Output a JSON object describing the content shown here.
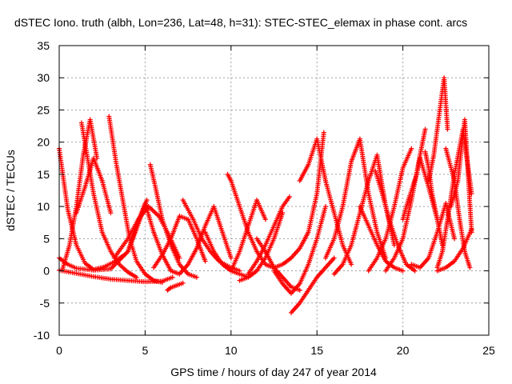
{
  "chart_data": {
    "type": "scatter",
    "title": "dSTEC Iono. truth (albh, Lon=236, Lat=48, h=31): STEC-STEC_elemax in phase cont. arcs",
    "xlabel": "GPS time / hours of day 247 of year 2014",
    "ylabel": "dSTEC  / TECUs",
    "xlim": [
      0,
      25
    ],
    "ylim": [
      -10,
      35
    ],
    "xticks": [
      "0",
      "5",
      "10",
      "15",
      "20",
      "25"
    ],
    "yticks": [
      "-10",
      "-5",
      "0",
      "5",
      "10",
      "15",
      "20",
      "25",
      "30",
      "35"
    ],
    "grid": true,
    "legend": "none",
    "marker": "+",
    "color": "#ff0000",
    "series": [
      {
        "x": [
          0.0,
          0.5,
          1.0,
          1.5,
          2.0,
          2.6,
          3.2,
          3.8
        ],
        "y": [
          19.0,
          9.5,
          4.0,
          1.2,
          0.2,
          0.6,
          1.4,
          2.5
        ]
      },
      {
        "x": [
          0.0,
          0.5,
          1.0,
          2.0,
          3.0,
          4.0,
          4.5,
          5.1
        ],
        "y": [
          2.0,
          1.0,
          0.4,
          0.1,
          0.3,
          3.0,
          6.5,
          11.0
        ]
      },
      {
        "x": [
          0.0,
          1.0,
          2.0,
          3.0,
          4.0,
          5.0,
          6.0,
          6.6
        ],
        "y": [
          0.1,
          -0.4,
          -0.9,
          -1.3,
          -1.5,
          -1.7,
          -1.6,
          -1.0
        ]
      },
      {
        "x": [
          0.2,
          0.6,
          1.0,
          1.4,
          1.8,
          2.2
        ],
        "y": [
          0.3,
          4.0,
          10.0,
          18.0,
          23.5,
          17.5
        ]
      },
      {
        "x": [
          1.3,
          2.0,
          2.5,
          3.0,
          3.5,
          4.0,
          4.5
        ],
        "y": [
          23.0,
          12.0,
          6.0,
          3.0,
          1.0,
          -0.2,
          -1.0
        ]
      },
      {
        "x": [
          1.0,
          1.5,
          2.0,
          2.5,
          3.0
        ],
        "y": [
          9.0,
          13.0,
          17.5,
          14.0,
          9.0
        ]
      },
      {
        "x": [
          2.9,
          3.3,
          3.7,
          4.1,
          4.5,
          5.0,
          5.5,
          6.0
        ],
        "y": [
          24.0,
          17.0,
          11.0,
          5.0,
          1.5,
          -0.5,
          -1.5,
          -1.8
        ]
      },
      {
        "x": [
          3.2,
          4.0,
          4.6,
          5.2,
          5.8,
          6.4,
          7.0
        ],
        "y": [
          2.0,
          5.0,
          8.0,
          10.0,
          8.5,
          5.5,
          2.0
        ]
      },
      {
        "x": [
          4.0,
          4.5,
          5.0,
          5.5,
          6.0,
          6.5
        ],
        "y": [
          3.0,
          7.0,
          10.5,
          6.0,
          2.5,
          0.0
        ]
      },
      {
        "x": [
          5.3,
          5.6,
          6.0,
          6.5,
          7.0,
          7.5,
          8.0
        ],
        "y": [
          16.5,
          13.0,
          8.0,
          4.0,
          1.0,
          -0.5,
          -1.0
        ]
      },
      {
        "x": [
          6.3,
          6.5,
          6.8,
          7.0,
          7.2
        ],
        "y": [
          -3.0,
          -2.6,
          -2.3,
          -2.1,
          -1.9
        ]
      },
      {
        "x": [
          5.5,
          6.0,
          6.5,
          7.0,
          7.5,
          8.0,
          8.5
        ],
        "y": [
          0.5,
          2.5,
          5.0,
          8.5,
          8.0,
          5.0,
          1.5
        ]
      },
      {
        "x": [
          7.2,
          7.8,
          8.3,
          8.8,
          9.3,
          10.0,
          10.5
        ],
        "y": [
          11.0,
          8.0,
          5.0,
          3.0,
          1.5,
          0.5,
          0.0
        ]
      },
      {
        "x": [
          6.5,
          7.0,
          7.5,
          8.0,
          8.5,
          9.0,
          9.5,
          10.0
        ],
        "y": [
          0.0,
          -0.5,
          1.0,
          3.5,
          7.0,
          10.0,
          6.0,
          2.0
        ]
      },
      {
        "x": [
          8.5,
          9.0,
          9.5,
          10.0,
          10.5,
          11.0
        ],
        "y": [
          6.0,
          3.0,
          1.0,
          0.0,
          -0.5,
          -1.0
        ]
      },
      {
        "x": [
          9.8,
          10.0,
          10.5,
          11.0,
          11.5,
          12.0,
          12.5
        ],
        "y": [
          15.0,
          14.0,
          10.0,
          6.0,
          3.0,
          1.0,
          0.5
        ]
      },
      {
        "x": [
          10.0,
          10.5,
          11.0,
          11.5,
          12.0
        ],
        "y": [
          0.0,
          3.0,
          7.0,
          11.0,
          8.0
        ]
      },
      {
        "x": [
          10.5,
          11.0,
          11.5,
          12.0,
          12.5,
          13.0
        ],
        "y": [
          -1.5,
          -1.0,
          0.0,
          2.0,
          5.0,
          9.0
        ]
      },
      {
        "x": [
          11.5,
          12.0,
          12.5,
          13.0,
          13.5,
          14.0
        ],
        "y": [
          5.0,
          3.0,
          0.5,
          -1.0,
          -2.5,
          -3.0
        ]
      },
      {
        "x": [
          11.0,
          11.5,
          12.0,
          12.5,
          13.0,
          13.4
        ],
        "y": [
          -0.5,
          1.5,
          4.0,
          7.0,
          10.0,
          11.5
        ]
      },
      {
        "x": [
          12.5,
          13.0,
          13.5,
          14.0,
          14.5,
          15.0,
          15.5
        ],
        "y": [
          0.0,
          -2.0,
          -3.5,
          -2.0,
          1.0,
          5.0,
          10.0
        ]
      },
      {
        "x": [
          12.0,
          12.5,
          13.0,
          13.5,
          14.0,
          14.5,
          15.0,
          15.4
        ],
        "y": [
          1.0,
          0.5,
          1.0,
          2.0,
          3.5,
          6.0,
          12.0,
          21.5
        ]
      },
      {
        "x": [
          13.5,
          14.0,
          14.5,
          15.0,
          15.5,
          16.0
        ],
        "y": [
          -6.5,
          -5.0,
          -3.0,
          -1.0,
          0.5,
          2.0
        ]
      },
      {
        "x": [
          14.0,
          14.5,
          15.0,
          15.5,
          16.0,
          16.5,
          17.0
        ],
        "y": [
          14.0,
          16.5,
          20.5,
          14.0,
          9.0,
          4.0,
          1.0
        ]
      },
      {
        "x": [
          15.5,
          16.0,
          16.5,
          17.0,
          17.5,
          18.0,
          18.5,
          19.0
        ],
        "y": [
          2.0,
          5.0,
          10.0,
          17.0,
          20.5,
          12.0,
          6.0,
          2.0
        ]
      },
      {
        "x": [
          16.0,
          16.5,
          17.0,
          17.5,
          18.0,
          18.5,
          19.0,
          19.5
        ],
        "y": [
          -0.5,
          1.0,
          4.0,
          9.0,
          14.0,
          18.0,
          10.0,
          4.0
        ]
      },
      {
        "x": [
          17.5,
          18.0,
          18.5,
          19.0,
          19.5,
          20.0
        ],
        "y": [
          10.0,
          7.0,
          4.0,
          1.5,
          0.5,
          0.0
        ]
      },
      {
        "x": [
          18.0,
          18.5,
          19.0,
          19.5,
          20.0,
          20.5
        ],
        "y": [
          0.0,
          2.0,
          5.0,
          10.0,
          16.0,
          19.0
        ]
      },
      {
        "x": [
          18.4,
          18.8,
          19.2,
          19.7,
          20.2,
          20.7
        ],
        "y": [
          15.5,
          12.0,
          8.0,
          4.0,
          1.0,
          0.0
        ]
      },
      {
        "x": [
          19.0,
          19.5,
          20.0,
          20.5,
          21.0,
          21.3
        ],
        "y": [
          0.0,
          2.0,
          5.0,
          11.0,
          18.0,
          22.0
        ]
      },
      {
        "x": [
          20.0,
          20.2,
          20.5,
          20.8,
          21.0,
          21.5,
          22.0
        ],
        "y": [
          8.0,
          10.0,
          12.5,
          15.0,
          17.5,
          13.0,
          8.0
        ]
      },
      {
        "x": [
          20.5,
          21.0,
          21.5,
          22.0,
          22.5,
          23.0
        ],
        "y": [
          1.0,
          0.5,
          2.0,
          6.0,
          10.5,
          5.0
        ]
      },
      {
        "x": [
          21.3,
          21.5,
          21.7,
          22.0,
          22.3
        ],
        "y": [
          18.5,
          16.0,
          12.0,
          8.0,
          4.0
        ]
      },
      {
        "x": [
          21.5,
          21.8,
          22.0,
          22.2,
          22.4,
          22.6
        ],
        "y": [
          14.0,
          18.0,
          22.0,
          26.0,
          30.0,
          22.0
        ]
      },
      {
        "x": [
          22.0,
          22.3,
          22.6,
          23.0,
          23.5,
          24.0
        ],
        "y": [
          0.5,
          3.0,
          8.0,
          15.0,
          22.0,
          12.0
        ]
      },
      {
        "x": [
          22.5,
          23.0,
          23.3,
          23.6,
          23.9
        ],
        "y": [
          19.0,
          14.0,
          8.0,
          3.0,
          0.5
        ]
      },
      {
        "x": [
          22.0,
          22.5,
          23.0,
          23.5,
          24.0
        ],
        "y": [
          0.0,
          0.5,
          1.5,
          3.5,
          6.5
        ]
      },
      {
        "x": [
          22.8,
          23.2,
          23.6,
          24.0
        ],
        "y": [
          10.0,
          14.0,
          23.5,
          6.0
        ]
      }
    ]
  }
}
